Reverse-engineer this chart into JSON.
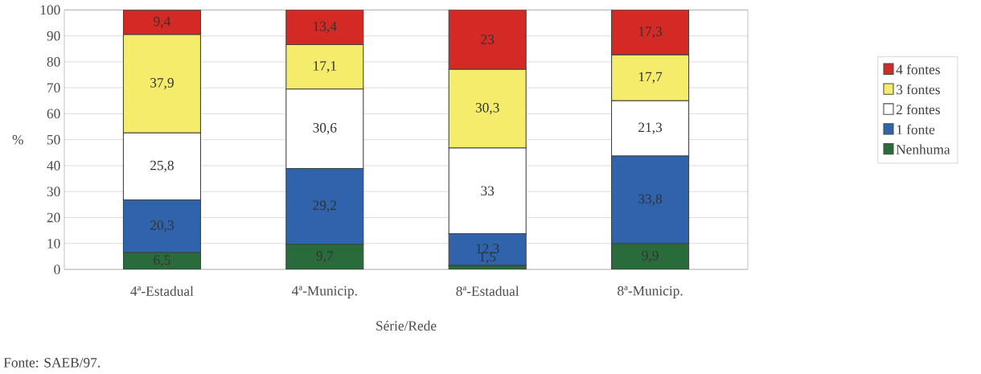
{
  "chart_data": {
    "type": "bar",
    "stacked": true,
    "xlabel": "Série/Rede",
    "ylabel": "%",
    "categories": [
      "4ª-Estadual",
      "4ª-Municip.",
      "8ª-Estadual",
      "8ª-Municip."
    ],
    "series": [
      {
        "name": "Nenhuma",
        "color": "#2a6b3c",
        "values": [
          6.5,
          9.7,
          1.5,
          9.9
        ],
        "value_labels": [
          "6,5",
          "9,7",
          "1,5",
          "9,9"
        ]
      },
      {
        "name": "1 fonte",
        "color": "#2f63ab",
        "values": [
          20.3,
          29.2,
          12.3,
          33.8
        ],
        "value_labels": [
          "20,3",
          "29,2",
          "12,3",
          "33,8"
        ]
      },
      {
        "name": "2 fontes",
        "color": "#ffffff",
        "values": [
          25.8,
          30.6,
          33,
          21.3
        ],
        "value_labels": [
          "25,8",
          "30,6",
          "33",
          "21,3"
        ]
      },
      {
        "name": "3 fontes",
        "color": "#f5ec6c",
        "values": [
          37.9,
          17.1,
          30.3,
          17.7
        ],
        "value_labels": [
          "37,9",
          "17,1",
          "30,3",
          "17,7"
        ]
      },
      {
        "name": "4 fontes",
        "color": "#d42a25",
        "values": [
          9.4,
          13.4,
          23,
          17.3
        ],
        "value_labels": [
          "9,4",
          "13,4",
          "23",
          "17,3"
        ]
      }
    ],
    "ylim": [
      0,
      100
    ],
    "yticks": [
      0,
      10,
      20,
      30,
      40,
      50,
      60,
      70,
      80,
      90,
      100
    ],
    "grid": "y",
    "legend": "right",
    "annotations": [
      "Fonte: SAEB/97."
    ]
  }
}
